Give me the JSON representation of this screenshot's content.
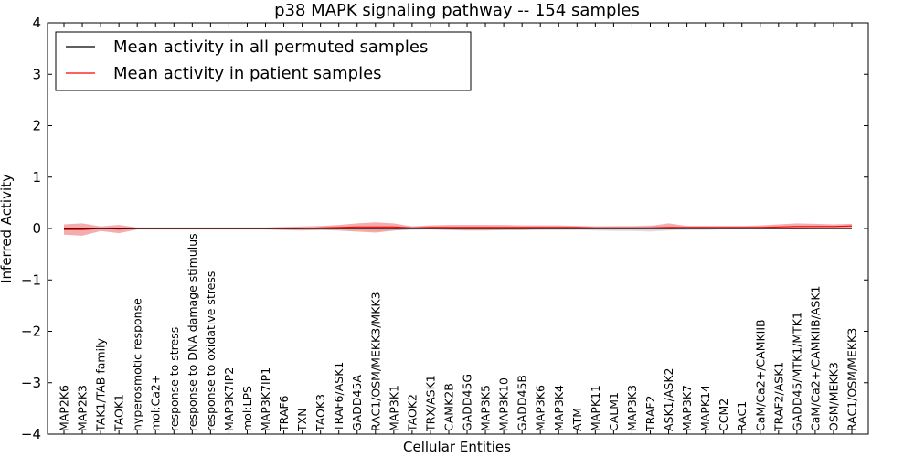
{
  "chart_data": {
    "type": "line",
    "title": "p38 MAPK signaling pathway -- 154 samples",
    "xlabel": "Cellular Entities",
    "ylabel": "Inferred Activity",
    "ylim": [
      -4,
      4
    ],
    "yticks": [
      4,
      3,
      2,
      1,
      0,
      -1,
      -2,
      -3,
      -4
    ],
    "ytick_labels": [
      "4",
      "3",
      "2",
      "1",
      "0",
      "−1",
      "−2",
      "−3",
      "−4"
    ],
    "grid": false,
    "legend_position": "top-left",
    "categories": [
      "MAP2K6",
      "MAP2K3",
      "TAK1/TAB family",
      "TAOK1",
      "hyperosmotic response",
      "mol:Ca2+",
      "response to stress",
      "response to DNA damage stimulus",
      "response to oxidative stress",
      "MAP3K7IP2",
      "mol:LPS",
      "MAP3K7IP1",
      "TRAF6",
      "TXN",
      "TAOK3",
      "TRAF6/ASK1",
      "GADD45A",
      "RAC1/OSM/MEKK3/MKK3",
      "MAP3K1",
      "TAOK2",
      "TRX/ASK1",
      "CAMK2B",
      "GADD45G",
      "MAP3K5",
      "MAP3K10",
      "GADD45B",
      "MAP3K6",
      "MAP3K4",
      "ATM",
      "MAPK11",
      "CALM1",
      "MAP3K3",
      "TRAF2",
      "ASK1/ASK2",
      "MAP3K7",
      "MAPK14",
      "CCM2",
      "RAC1",
      "CaM/Ca2+/CAMKIIB",
      "TRAF2/ASK1",
      "GADD45/MTK1/MTK1",
      "CaM/Ca2+/CAMKIIB/ASK1",
      "OSM/MEKK3",
      "RAC1/OSM/MEKK3"
    ],
    "series": [
      {
        "name": "Mean activity in all permuted samples",
        "color": "#000000",
        "values": [
          0,
          0,
          0,
          0,
          0,
          0,
          0,
          0,
          0,
          0,
          0,
          0,
          0,
          0,
          0,
          0,
          0,
          0,
          0,
          0,
          0,
          0,
          0,
          0,
          0,
          0,
          0,
          0,
          0,
          0,
          0,
          0,
          0,
          0,
          0,
          0,
          0,
          0,
          0,
          0,
          0,
          0,
          0,
          0
        ],
        "band_lower": [
          -0.02,
          -0.02,
          -0.02,
          -0.02,
          -0.02,
          -0.02,
          -0.02,
          -0.02,
          -0.02,
          -0.02,
          -0.02,
          -0.02,
          -0.02,
          -0.02,
          -0.02,
          -0.02,
          -0.03,
          -0.05,
          -0.04,
          -0.03,
          -0.02,
          -0.02,
          -0.03,
          -0.03,
          -0.03,
          -0.03,
          -0.03,
          -0.03,
          -0.03,
          -0.04,
          -0.05,
          -0.05,
          -0.06,
          -0.04,
          -0.03,
          -0.03,
          -0.02,
          -0.02,
          -0.02,
          -0.02,
          -0.02,
          -0.02,
          -0.02,
          -0.02
        ],
        "band_upper": [
          0.02,
          0.02,
          0.02,
          0.02,
          0.02,
          0.02,
          0.02,
          0.02,
          0.02,
          0.02,
          0.02,
          0.02,
          0.02,
          0.02,
          0.02,
          0.02,
          0.03,
          0.05,
          0.04,
          0.03,
          0.02,
          0.02,
          0.03,
          0.03,
          0.03,
          0.03,
          0.03,
          0.03,
          0.03,
          0.04,
          0.05,
          0.05,
          0.06,
          0.04,
          0.03,
          0.03,
          0.02,
          0.02,
          0.02,
          0.02,
          0.02,
          0.02,
          0.02,
          0.02
        ]
      },
      {
        "name": "Mean activity in patient samples",
        "color": "#ff0000",
        "band_color": "#f08080",
        "values": [
          -0.02,
          -0.02,
          0.0,
          -0.01,
          0.0,
          0.0,
          0.0,
          0.0,
          0.0,
          0.0,
          0.0,
          0.0,
          0.0,
          0.0,
          0.01,
          0.02,
          0.03,
          0.03,
          0.03,
          0.01,
          0.02,
          0.02,
          0.02,
          0.02,
          0.02,
          0.02,
          0.02,
          0.02,
          0.02,
          0.01,
          0.01,
          0.01,
          0.01,
          0.02,
          0.02,
          0.02,
          0.02,
          0.02,
          0.02,
          0.03,
          0.04,
          0.04,
          0.04,
          0.05
        ],
        "band_lower": [
          -0.12,
          -0.14,
          -0.05,
          -0.09,
          -0.02,
          -0.02,
          -0.02,
          -0.02,
          -0.02,
          -0.02,
          -0.02,
          -0.02,
          -0.03,
          -0.04,
          -0.03,
          -0.04,
          -0.06,
          -0.08,
          -0.04,
          -0.01,
          -0.02,
          -0.03,
          -0.04,
          -0.04,
          -0.03,
          -0.03,
          -0.02,
          -0.02,
          -0.02,
          -0.02,
          -0.02,
          -0.02,
          -0.02,
          -0.02,
          -0.01,
          -0.01,
          -0.01,
          -0.01,
          -0.01,
          -0.01,
          -0.02,
          -0.01,
          0.0,
          0.0
        ],
        "band_upper": [
          0.08,
          0.1,
          0.04,
          0.07,
          0.02,
          0.02,
          0.02,
          0.02,
          0.02,
          0.02,
          0.02,
          0.02,
          0.03,
          0.04,
          0.05,
          0.07,
          0.1,
          0.12,
          0.1,
          0.04,
          0.06,
          0.07,
          0.07,
          0.07,
          0.07,
          0.06,
          0.06,
          0.06,
          0.05,
          0.04,
          0.04,
          0.04,
          0.05,
          0.1,
          0.05,
          0.05,
          0.05,
          0.05,
          0.06,
          0.08,
          0.1,
          0.09,
          0.08,
          0.09
        ]
      }
    ]
  }
}
